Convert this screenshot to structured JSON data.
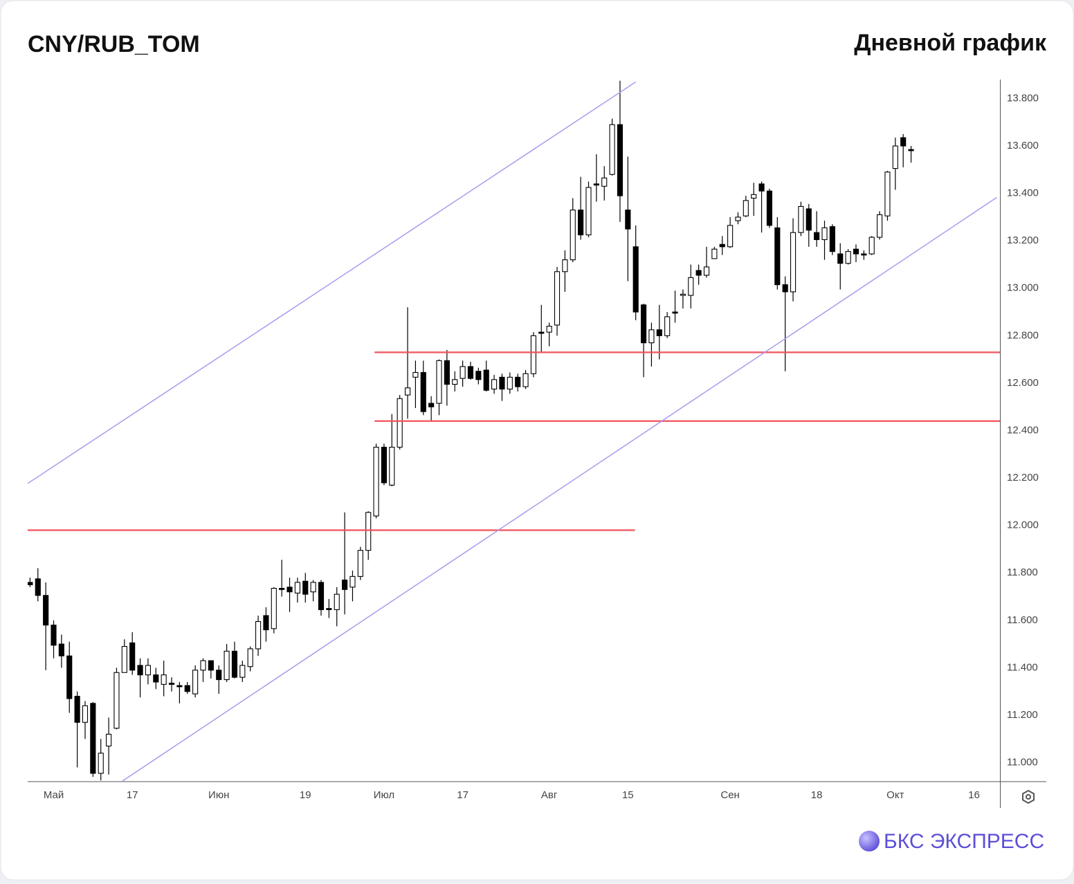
{
  "chart_data": {
    "type": "candlestick",
    "title": "CNY/RUB_TOM",
    "subtitle": "Дневной график",
    "brand": "БКС ЭКСПРЕСС",
    "up_color": "#ffffff",
    "down_color": "#000000",
    "open": [
      11.76,
      11.775,
      11.705,
      11.58,
      11.5,
      11.45,
      11.28,
      11.17,
      11.25,
      10.955,
      11.07,
      11.145,
      11.38,
      11.505,
      11.41,
      11.37,
      11.37,
      11.33,
      11.335,
      11.325,
      11.325,
      11.29,
      11.39,
      11.43,
      11.39,
      11.35,
      11.47,
      11.36,
      11.405,
      11.48,
      11.62,
      11.565,
      11.735,
      11.74,
      11.715,
      11.765,
      11.72,
      11.76,
      11.65,
      11.645,
      11.77,
      11.74,
      11.785,
      11.895,
      12.04,
      12.33,
      12.17,
      12.33,
      12.55,
      12.625,
      12.645,
      12.515,
      12.515,
      12.695,
      12.595,
      12.62,
      12.67,
      12.65,
      12.655,
      12.575,
      12.625,
      12.575,
      12.625,
      12.585,
      12.64,
      12.815,
      12.815,
      12.845,
      13.07,
      13.12,
      13.33,
      13.225,
      13.44,
      13.43,
      13.48,
      13.69,
      13.33,
      13.175,
      12.93,
      12.77,
      12.825,
      12.8,
      12.9,
      12.97,
      12.97,
      13.075,
      13.055,
      13.125,
      13.185,
      13.175,
      13.285,
      13.305,
      13.38,
      13.44,
      13.41,
      13.255,
      13.015,
      12.985,
      13.235,
      13.335,
      13.235,
      13.205,
      13.26,
      13.145,
      13.105,
      13.165,
      13.145,
      13.145,
      13.215,
      13.305,
      13.505,
      13.635,
      13.585
    ],
    "high": [
      11.78,
      11.82,
      11.76,
      11.6,
      11.54,
      11.51,
      11.3,
      11.26,
      11.255,
      11.1,
      11.19,
      11.4,
      11.52,
      11.55,
      11.44,
      11.44,
      11.4,
      11.43,
      11.36,
      11.34,
      11.34,
      11.41,
      11.44,
      11.43,
      11.41,
      11.5,
      11.51,
      11.43,
      11.49,
      11.62,
      11.655,
      11.74,
      11.855,
      11.78,
      11.78,
      11.8,
      11.77,
      11.77,
      11.69,
      11.74,
      12.055,
      11.81,
      11.91,
      12.06,
      12.345,
      12.345,
      12.47,
      12.55,
      12.92,
      12.695,
      12.695,
      12.545,
      12.7,
      12.74,
      12.65,
      12.695,
      12.69,
      12.665,
      12.695,
      12.635,
      12.64,
      12.645,
      12.64,
      12.655,
      12.815,
      12.93,
      12.855,
      13.09,
      13.16,
      13.38,
      13.47,
      13.45,
      13.565,
      13.515,
      13.715,
      13.875,
      13.555,
      13.265,
      12.935,
      12.855,
      12.93,
      12.9,
      12.99,
      12.995,
      13.1,
      13.1,
      13.175,
      13.175,
      13.22,
      13.3,
      13.32,
      13.39,
      13.445,
      13.45,
      13.42,
      13.3,
      13.05,
      13.295,
      13.365,
      13.355,
      13.325,
      13.285,
      13.27,
      13.19,
      13.165,
      13.185,
      13.16,
      13.22,
      13.325,
      13.495,
      13.635,
      13.65,
      13.6
    ],
    "low": [
      11.74,
      11.68,
      11.39,
      11.44,
      11.4,
      11.21,
      10.98,
      11.1,
      10.94,
      10.925,
      10.95,
      11.14,
      11.38,
      11.37,
      11.275,
      11.33,
      11.31,
      11.28,
      11.3,
      11.25,
      11.29,
      11.275,
      11.34,
      11.355,
      11.29,
      11.34,
      11.355,
      11.34,
      11.385,
      11.45,
      11.51,
      11.545,
      11.7,
      11.635,
      11.675,
      11.675,
      11.68,
      11.62,
      11.61,
      11.575,
      11.625,
      11.68,
      11.77,
      11.855,
      12.03,
      12.17,
      12.165,
      12.32,
      12.45,
      12.495,
      12.465,
      12.44,
      12.465,
      12.505,
      12.565,
      12.585,
      12.615,
      12.595,
      12.565,
      12.555,
      12.525,
      12.555,
      12.565,
      12.575,
      12.625,
      12.73,
      12.755,
      12.8,
      12.985,
      13.11,
      13.205,
      13.215,
      13.365,
      13.37,
      13.475,
      13.28,
      13.03,
      12.865,
      12.625,
      12.67,
      12.7,
      12.79,
      12.855,
      12.915,
      12.915,
      13.015,
      13.045,
      13.125,
      13.14,
      13.17,
      13.27,
      13.3,
      13.305,
      13.235,
      13.255,
      12.995,
      12.65,
      12.945,
      13.22,
      13.175,
      13.175,
      13.12,
      13.14,
      12.995,
      13.1,
      13.11,
      13.12,
      13.14,
      13.205,
      13.285,
      13.415,
      13.51,
      13.53
    ],
    "close": [
      11.75,
      11.705,
      11.58,
      11.495,
      11.45,
      11.27,
      11.17,
      11.24,
      10.955,
      11.04,
      11.12,
      11.38,
      11.49,
      11.39,
      11.37,
      11.41,
      11.34,
      11.37,
      11.33,
      11.32,
      11.3,
      11.39,
      11.43,
      11.39,
      11.35,
      11.47,
      11.36,
      11.41,
      11.48,
      11.595,
      11.56,
      11.735,
      11.73,
      11.72,
      11.76,
      11.71,
      11.76,
      11.645,
      11.645,
      11.71,
      11.73,
      11.785,
      11.895,
      12.055,
      12.33,
      12.18,
      12.33,
      12.535,
      12.58,
      12.645,
      12.48,
      12.5,
      12.695,
      12.595,
      12.615,
      12.67,
      12.62,
      12.615,
      12.57,
      12.615,
      12.575,
      12.625,
      12.585,
      12.64,
      12.8,
      12.81,
      12.84,
      13.07,
      13.12,
      13.33,
      13.225,
      13.425,
      13.435,
      13.465,
      13.69,
      13.39,
      13.25,
      12.9,
      12.77,
      12.825,
      12.8,
      12.88,
      12.895,
      12.975,
      13.045,
      13.055,
      13.09,
      13.165,
      13.175,
      13.265,
      13.3,
      13.37,
      13.395,
      13.41,
      13.265,
      13.015,
      12.985,
      13.235,
      13.345,
      13.245,
      13.205,
      13.255,
      13.155,
      13.105,
      13.155,
      13.145,
      13.14,
      13.215,
      13.31,
      13.49,
      13.6,
      13.6,
      13.58
    ],
    "xlim": [
      -0.3,
      123.3
    ],
    "ylim": [
      10.92,
      13.88
    ],
    "xticks": [
      {
        "value": 3,
        "label": "Май"
      },
      {
        "value": 13,
        "label": "17"
      },
      {
        "value": 24,
        "label": "Июн"
      },
      {
        "value": 35,
        "label": "19"
      },
      {
        "value": 45,
        "label": "Июл"
      },
      {
        "value": 55,
        "label": "17"
      },
      {
        "value": 66,
        "label": "Авг"
      },
      {
        "value": 76,
        "label": "15"
      },
      {
        "value": 89,
        "label": "Сен"
      },
      {
        "value": 100,
        "label": "18"
      },
      {
        "value": 110,
        "label": "Окт"
      },
      {
        "value": 120,
        "label": "16"
      }
    ],
    "yticks": [
      {
        "value": 11.0,
        "label": "11.000"
      },
      {
        "value": 11.2,
        "label": "11.200"
      },
      {
        "value": 11.4,
        "label": "11.400"
      },
      {
        "value": 11.6,
        "label": "11.600"
      },
      {
        "value": 11.8,
        "label": "11.800"
      },
      {
        "value": 12.0,
        "label": "12.000"
      },
      {
        "value": 12.2,
        "label": "12.200"
      },
      {
        "value": 12.4,
        "label": "12.400"
      },
      {
        "value": 12.6,
        "label": "12.600"
      },
      {
        "value": 12.8,
        "label": "12.800"
      },
      {
        "value": 13.0,
        "label": "13.000"
      },
      {
        "value": 13.2,
        "label": "13.200"
      },
      {
        "value": 13.4,
        "label": "13.400"
      },
      {
        "value": 13.6,
        "label": "13.600"
      },
      {
        "value": 13.8,
        "label": "13.800"
      }
    ],
    "levels": [
      {
        "value": 12.73,
        "from": 43.8,
        "to": 123.3,
        "color": "#f0505a"
      },
      {
        "value": 12.44,
        "from": 43.8,
        "to": 123.3,
        "color": "#f0505a"
      },
      {
        "value": 11.98,
        "from": -0.3,
        "to": 76.9,
        "color": "#f0505a"
      }
    ],
    "trendlines": [
      {
        "x": [
          -0.3,
          77
        ],
        "y": [
          12.177,
          13.87
        ],
        "color": "#a99bf0"
      },
      {
        "x": [
          9.2,
          122.9
        ],
        "y": [
          10.866,
          13.383
        ],
        "color": "#a99bf0"
      }
    ]
  }
}
